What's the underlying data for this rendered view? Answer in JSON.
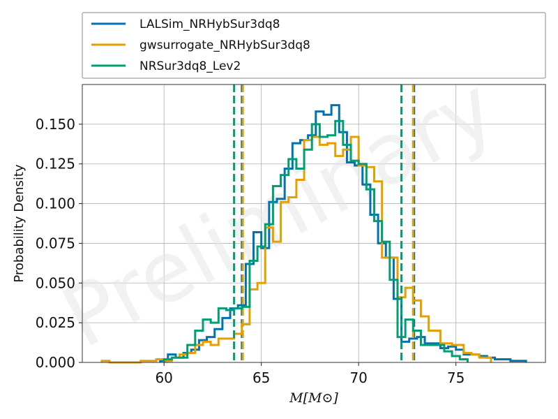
{
  "chart_data": {
    "type": "histogram",
    "watermark": "Preliminary",
    "xlabel": "M[M⊙]",
    "ylabel": "Probability Density",
    "xlim": [
      55.8,
      79.6
    ],
    "ylim": [
      0,
      0.175
    ],
    "xticks": [
      60,
      65,
      70,
      75
    ],
    "yticks": [
      0.0,
      0.025,
      0.05,
      0.075,
      0.1,
      0.125,
      0.15
    ],
    "ytick_labels": [
      "0.000",
      "0.025",
      "0.050",
      "0.075",
      "0.100",
      "0.125",
      "0.150"
    ],
    "grid": true,
    "legend_position": "top",
    "series": [
      {
        "name": "LALSim_NRHybSur3dq8",
        "color": "#0072b2",
        "vlines": [
          64.0,
          72.85
        ],
        "edges": [
          59.8,
          60.2,
          60.6,
          61.0,
          61.4,
          61.8,
          62.2,
          62.6,
          63.0,
          63.4,
          63.8,
          64.2,
          64.6,
          65.0,
          65.4,
          65.8,
          66.2,
          66.6,
          67.0,
          67.4,
          67.8,
          68.2,
          68.6,
          69.0,
          69.4,
          69.8,
          70.2,
          70.6,
          71.0,
          71.4,
          71.8,
          72.2,
          72.6,
          73.0,
          73.4,
          73.8,
          74.2,
          74.6,
          75.0,
          75.4,
          75.8,
          76.2,
          76.6,
          77.0,
          77.4,
          77.8,
          78.2,
          78.6
        ],
        "values": [
          0.001,
          0.005,
          0.003,
          0.006,
          0.008,
          0.014,
          0.016,
          0.021,
          0.028,
          0.034,
          0.036,
          0.062,
          0.082,
          0.072,
          0.101,
          0.103,
          0.122,
          0.138,
          0.14,
          0.143,
          0.158,
          0.156,
          0.162,
          0.145,
          0.126,
          0.124,
          0.112,
          0.093,
          0.075,
          0.066,
          0.04,
          0.013,
          0.015,
          0.016,
          0.012,
          0.012,
          0.009,
          0.01,
          0.008,
          0.005,
          0.005,
          0.004,
          0.003,
          0.002,
          0.002,
          0.001,
          0.001
        ]
      },
      {
        "name": "gwsurrogate_NRHybSur3dq8",
        "color": "#e69f00",
        "vlines": [
          64.05,
          72.8
        ],
        "edges": [
          56.8,
          57.2,
          57.6,
          58.0,
          58.4,
          58.8,
          59.2,
          59.6,
          60.0,
          60.4,
          60.8,
          61.2,
          61.6,
          62.0,
          62.4,
          62.8,
          63.2,
          63.6,
          64.0,
          64.4,
          64.8,
          65.2,
          65.6,
          66.0,
          66.4,
          66.8,
          67.2,
          67.6,
          68.0,
          68.4,
          68.8,
          69.2,
          69.6,
          70.0,
          70.4,
          70.8,
          71.2,
          71.6,
          72.0,
          72.4,
          72.8,
          73.2,
          73.6,
          74.2,
          74.8,
          75.4,
          75.8,
          76.2,
          76.8
        ],
        "values": [
          0.001,
          0.0,
          0.0,
          0.0,
          0.0,
          0.001,
          0.001,
          0.002,
          0.001,
          0.003,
          0.005,
          0.006,
          0.011,
          0.013,
          0.011,
          0.015,
          0.015,
          0.018,
          0.024,
          0.046,
          0.05,
          0.085,
          0.076,
          0.101,
          0.104,
          0.115,
          0.14,
          0.142,
          0.137,
          0.138,
          0.13,
          0.134,
          0.142,
          0.124,
          0.123,
          0.114,
          0.066,
          0.066,
          0.041,
          0.047,
          0.039,
          0.029,
          0.02,
          0.012,
          0.011,
          0.006,
          0.005,
          0.003
        ]
      },
      {
        "name": "NRSur3dq8_Lev2",
        "color": "#009e73",
        "vlines": [
          63.6,
          72.2
        ],
        "edges": [
          60.0,
          60.4,
          60.8,
          61.2,
          61.6,
          62.0,
          62.4,
          62.8,
          63.2,
          63.6,
          64.0,
          64.4,
          64.8,
          65.2,
          65.6,
          66.0,
          66.4,
          66.8,
          67.2,
          67.6,
          68.0,
          68.4,
          68.8,
          69.2,
          69.6,
          70.0,
          70.4,
          70.8,
          71.2,
          71.6,
          72.0,
          72.4,
          72.8,
          73.2,
          73.6,
          74.0,
          74.4,
          74.8,
          75.2,
          75.6
        ],
        "values": [
          0.002,
          0.003,
          0.003,
          0.011,
          0.02,
          0.027,
          0.025,
          0.034,
          0.033,
          0.034,
          0.035,
          0.064,
          0.073,
          0.087,
          0.111,
          0.118,
          0.128,
          0.122,
          0.134,
          0.15,
          0.142,
          0.143,
          0.152,
          0.137,
          0.127,
          0.125,
          0.109,
          0.089,
          0.076,
          0.052,
          0.016,
          0.027,
          0.02,
          0.011,
          0.011,
          0.011,
          0.007,
          0.004,
          0.002
        ]
      }
    ]
  }
}
